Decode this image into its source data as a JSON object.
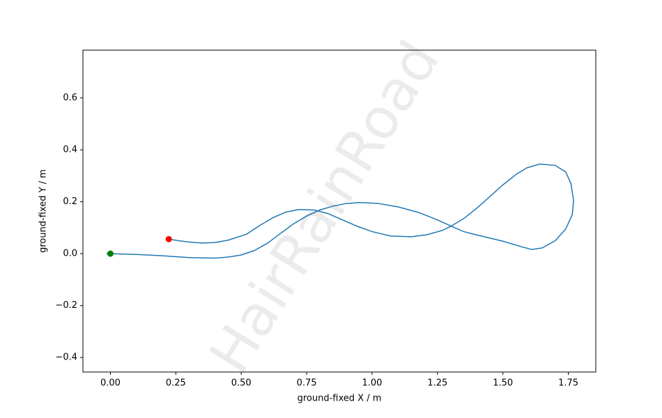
{
  "chart_data": {
    "type": "line",
    "watermark": "HairRainRoad",
    "x_label": "ground-fixed X / m",
    "y_label": "ground-fixed Y / m",
    "xlim": [
      -0.105,
      1.855
    ],
    "ylim": [
      -0.456,
      0.784
    ],
    "xticks": [
      {
        "value": 0,
        "label": "0.00"
      },
      {
        "value": 0.25,
        "label": "0.25"
      },
      {
        "value": 0.5,
        "label": "0.50"
      },
      {
        "value": 0.75,
        "label": "0.75"
      },
      {
        "value": 1,
        "label": "1.00"
      },
      {
        "value": 1.25,
        "label": "1.25"
      },
      {
        "value": 1.5,
        "label": "1.50"
      },
      {
        "value": 1.75,
        "label": "1.75"
      }
    ],
    "yticks": [
      {
        "value": -0.4,
        "label": "−0.4"
      },
      {
        "value": -0.2,
        "label": "−0.2"
      },
      {
        "value": 0,
        "label": "0.0"
      },
      {
        "value": 0.2,
        "label": "0.2"
      },
      {
        "value": 0.4,
        "label": "0.4"
      },
      {
        "value": 0.6,
        "label": "0.6"
      }
    ],
    "series": [
      {
        "color": "#1f77b4",
        "x": [
          -0.015,
          0,
          0.1,
          0.2,
          0.3,
          0.4,
          0.45,
          0.5,
          0.55,
          0.6,
          0.65,
          0.7,
          0.75,
          0.8,
          0.85,
          0.9,
          0.95,
          1.02,
          1.1,
          1.18,
          1.25,
          1.3,
          1.35,
          1.4,
          1.5,
          1.57,
          1.61,
          1.65,
          1.7,
          1.74,
          1.765,
          1.77,
          1.76,
          1.74,
          1.7,
          1.64,
          1.59,
          1.55,
          1.5,
          1.45,
          1.4,
          1.35,
          1.3,
          1.27,
          1.21,
          1.15,
          1.07,
          1.0,
          0.94,
          0.88,
          0.83,
          0.78,
          0.72,
          0.67,
          0.62,
          0.57,
          0.52,
          0.45,
          0.4,
          0.35,
          0.3,
          0.26,
          0.223
        ],
        "y": [
          0,
          0,
          -0.003,
          -0.008,
          -0.015,
          -0.017,
          -0.013,
          -0.005,
          0.012,
          0.04,
          0.078,
          0.115,
          0.145,
          0.168,
          0.183,
          0.193,
          0.197,
          0.194,
          0.18,
          0.158,
          0.13,
          0.107,
          0.085,
          0.072,
          0.048,
          0.027,
          0.016,
          0.022,
          0.05,
          0.095,
          0.15,
          0.205,
          0.27,
          0.315,
          0.34,
          0.345,
          0.33,
          0.305,
          0.265,
          0.22,
          0.175,
          0.135,
          0.105,
          0.09,
          0.073,
          0.065,
          0.068,
          0.085,
          0.107,
          0.133,
          0.155,
          0.168,
          0.17,
          0.16,
          0.138,
          0.108,
          0.075,
          0.052,
          0.043,
          0.041,
          0.045,
          0.05,
          0.056
        ]
      }
    ],
    "points": [
      {
        "x": 0,
        "y": 0,
        "color": "green"
      },
      {
        "x": 0.223,
        "y": 0.056,
        "color": "red"
      }
    ]
  }
}
